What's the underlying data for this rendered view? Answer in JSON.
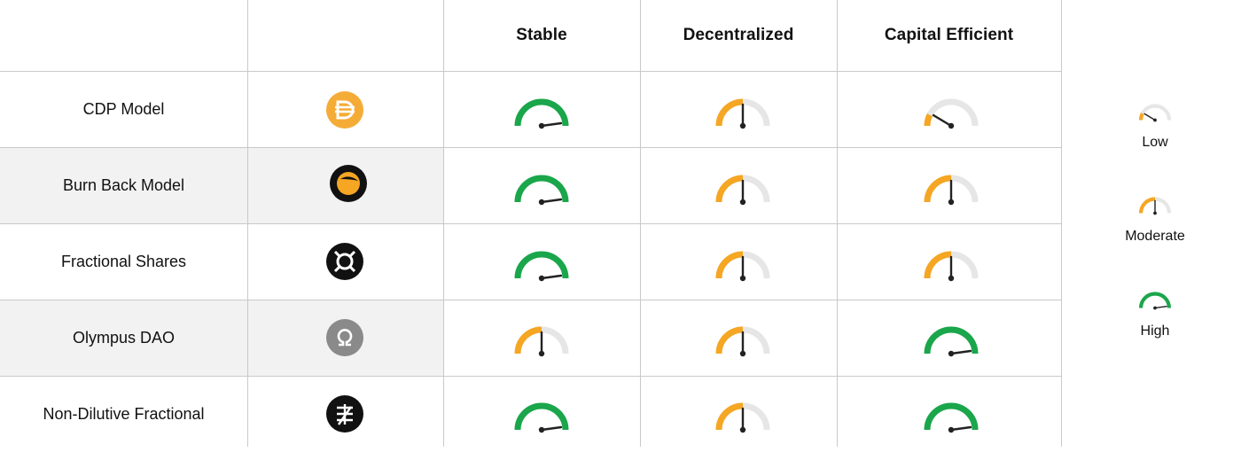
{
  "header": {
    "columns": [
      "Stable",
      "Decentralized",
      "Capital Efficient"
    ]
  },
  "colors": {
    "high": "#1aa64b",
    "moderate": "#f5a623",
    "low": "#f5a623",
    "track": "#e6e6e6",
    "needle": "#222222",
    "grid": "#c9c9c9",
    "shade": "#f2f2f2"
  },
  "levels": {
    "low": 0.15,
    "moderate": 0.5,
    "high": 1.0
  },
  "rows": [
    {
      "label": "CDP Model",
      "logo": "dai-icon",
      "ratings": [
        "high",
        "moderate",
        "low"
      ]
    },
    {
      "label": "Burn Back Model",
      "logo": "terra-icon",
      "ratings": [
        "high",
        "moderate",
        "moderate"
      ]
    },
    {
      "label": "Fractional Shares",
      "logo": "frax-icon",
      "ratings": [
        "high",
        "moderate",
        "moderate"
      ]
    },
    {
      "label": "Olympus DAO",
      "logo": "olympus-icon",
      "ratings": [
        "moderate",
        "moderate",
        "high"
      ]
    },
    {
      "label": "Non-Dilutive Fractional",
      "logo": "fei-icon",
      "ratings": [
        "high",
        "moderate",
        "high"
      ]
    }
  ],
  "legend": [
    {
      "label": "Low",
      "level": "low"
    },
    {
      "label": "Moderate",
      "level": "moderate"
    },
    {
      "label": "High",
      "level": "high"
    }
  ]
}
